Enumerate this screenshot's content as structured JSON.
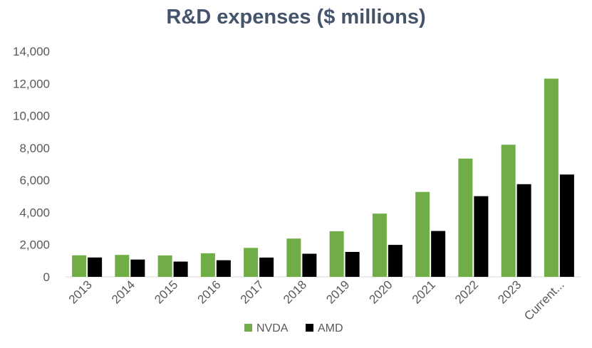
{
  "chart_data": {
    "type": "bar",
    "title": "R&D expenses ($ millions)",
    "xlabel": "",
    "ylabel": "",
    "categories": [
      "2013",
      "2014",
      "2015",
      "2016",
      "2017",
      "2018",
      "2019",
      "2020",
      "2021",
      "2022",
      "2023",
      "Current..."
    ],
    "series": [
      {
        "name": "NVDA",
        "color": "#70ad47",
        "values": [
          1336,
          1360,
          1331,
          1463,
          1797,
          2376,
          2829,
          3924,
          5268,
          7339,
          8200,
          12300
        ]
      },
      {
        "name": "AMD",
        "color": "#000000",
        "values": [
          1201,
          1072,
          947,
          1030,
          1196,
          1434,
          1547,
          1983,
          2845,
          5005,
          5750,
          6350
        ]
      }
    ],
    "ylim": [
      0,
      14000
    ],
    "yticks": [
      0,
      2000,
      4000,
      6000,
      8000,
      10000,
      12000,
      14000
    ],
    "ytick_labels": [
      "0",
      "2,000",
      "4,000",
      "6,000",
      "8,000",
      "10,000",
      "12,000",
      "14,000"
    ],
    "grid": false,
    "legend_position": "bottom",
    "axis_color": "#d9d9d9",
    "tick_color": "#595959"
  }
}
